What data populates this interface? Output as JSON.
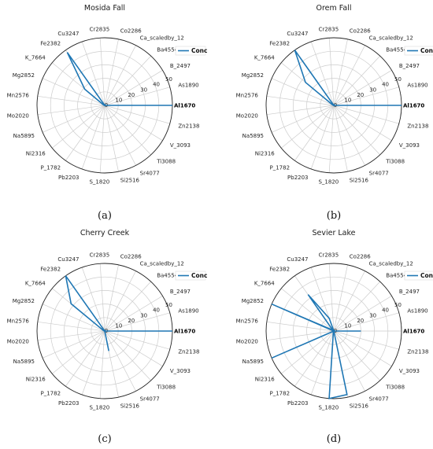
{
  "chart_data": [
    {
      "type": "radar",
      "panel_label": "(a)",
      "title": "Mosida Fall",
      "categories": [
        "Al1670",
        "As1890",
        "B_2497",
        "Ba4554",
        "Ca_scaledby_12",
        "Co2286",
        "Cr2835",
        "Cu3247",
        "Fe2382",
        "K_7664",
        "Mg2852",
        "Mn2576",
        "Mo2020",
        "Na5895",
        "Ni2316",
        "P_1782",
        "Pb2203",
        "S_1820",
        "Si2516",
        "Sr4077",
        "Ti3088",
        "V_3093",
        "Zn2138"
      ],
      "rticks": [
        "0",
        "10",
        "20",
        "30",
        "40",
        "50"
      ],
      "rlim": [
        0,
        50
      ],
      "series": [
        {
          "name": "Conc",
          "values": [
            50,
            0,
            0,
            0,
            1,
            0,
            0,
            0,
            48,
            19,
            1,
            0,
            0,
            0,
            0,
            0,
            0,
            0,
            0,
            0,
            0,
            0,
            0
          ]
        }
      ],
      "legend": "top-right"
    },
    {
      "type": "radar",
      "panel_label": "(b)",
      "title": "Orem Fall",
      "categories": [
        "Al1670",
        "As1890",
        "B_2497",
        "Ba4554",
        "Ca_scaledby_12",
        "Co2286",
        "Cr2835",
        "Cu3247",
        "Fe2382",
        "K_7664",
        "Mg2852",
        "Mn2576",
        "Mo2020",
        "Na5895",
        "Ni2316",
        "P_1782",
        "Pb2203",
        "S_1820",
        "Si2516",
        "Sr4077",
        "Ti3088",
        "V_3093",
        "Zn2138"
      ],
      "rticks": [
        "0",
        "10",
        "20",
        "30",
        "40",
        "50"
      ],
      "rlim": [
        0,
        50
      ],
      "series": [
        {
          "name": "Conc",
          "values": [
            50,
            0,
            0,
            0,
            1,
            0,
            0,
            0,
            50,
            27,
            1,
            0,
            0,
            0,
            0,
            0,
            0,
            0,
            0,
            0,
            0,
            0,
            0
          ]
        }
      ],
      "legend": "top-right"
    },
    {
      "type": "radar",
      "panel_label": "(c)",
      "title": "Cherry Creek",
      "categories": [
        "Al1670",
        "As1890",
        "B_2497",
        "Ba4554",
        "Ca_scaledby_12",
        "Co2286",
        "Cr2835",
        "Cu3247",
        "Fe2382",
        "K_7664",
        "Mg2852",
        "Mn2576",
        "Mo2020",
        "Na5895",
        "Ni2316",
        "P_1782",
        "Pb2203",
        "S_1820",
        "Si2516",
        "Sr4077",
        "Ti3088",
        "V_3093",
        "Zn2138"
      ],
      "rticks": [
        "0",
        "10",
        "20",
        "30",
        "40",
        "50"
      ],
      "rlim": [
        0,
        50
      ],
      "series": [
        {
          "name": "Conc",
          "values": [
            50,
            0,
            0,
            0,
            1,
            0,
            0,
            0,
            50,
            32,
            1,
            0,
            0,
            0,
            0,
            0,
            0,
            0,
            15,
            0,
            0,
            0,
            0
          ]
        }
      ],
      "legend": "top-right"
    },
    {
      "type": "radar",
      "panel_label": "(d)",
      "title": "Sevier Lake",
      "categories": [
        "Al1670",
        "As1890",
        "B_2497",
        "Ba4554",
        "Ca_scaledby_12",
        "Co2286",
        "Cr2835",
        "Cu3247",
        "Fe2382",
        "K_7664",
        "Mg2852",
        "Mn2576",
        "Mo2020",
        "Na5895",
        "Ni2316",
        "P_1782",
        "Pb2203",
        "S_1820",
        "Si2516",
        "Sr4077",
        "Ti3088",
        "V_3093",
        "Zn2138"
      ],
      "rticks": [
        "0",
        "10",
        "20",
        "30",
        "40",
        "50"
      ],
      "rlim": [
        0,
        50
      ],
      "series": [
        {
          "name": "Conc",
          "values": [
            20,
            0,
            0,
            0,
            1,
            0,
            0,
            10,
            33,
            1,
            50,
            0,
            0,
            50,
            0,
            0,
            1,
            50,
            48,
            0,
            0,
            0,
            0
          ]
        }
      ],
      "legend": "top-right"
    }
  ],
  "colors": {
    "series_line": "#1f77b4",
    "grid": "#cccccc",
    "outer_circle": "#222222"
  }
}
